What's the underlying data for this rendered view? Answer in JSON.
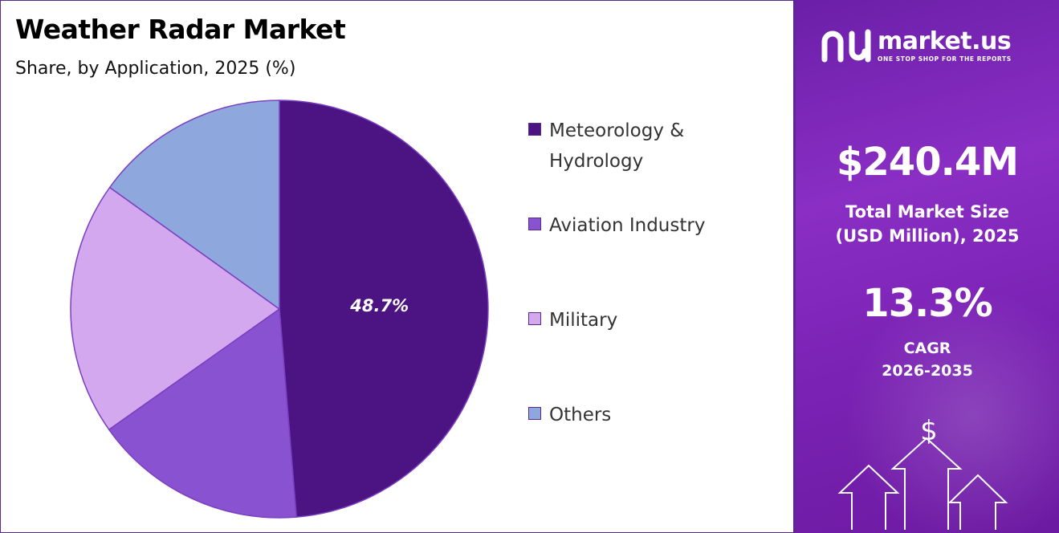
{
  "title": "Weather Radar Market",
  "subtitle": "Share, by Application, 2025 (%)",
  "chart_data": {
    "type": "pie",
    "title": "Weather Radar Market",
    "subtitle": "Share, by Application, 2025 (%)",
    "legend_position": "right",
    "slices": [
      {
        "name": "Meteorology & Hydrology",
        "value": 48.7,
        "label": "48.7%",
        "color": "#4b1482"
      },
      {
        "name": "Aviation Industry",
        "value": 16.5,
        "color": "#8952d0"
      },
      {
        "name": "Military",
        "value": 19.7,
        "color": "#d4a8ee"
      },
      {
        "name": "Others",
        "value": 15.1,
        "color": "#8ea8de"
      }
    ]
  },
  "legend": {
    "items": [
      {
        "line1": "Meteorology &",
        "line2": "Hydrology",
        "color": "#4b1482"
      },
      {
        "line1": "Aviation Industry",
        "line2": "",
        "color": "#8952d0"
      },
      {
        "line1": "Military",
        "line2": "",
        "color": "#d4a8ee"
      },
      {
        "line1": "Others",
        "line2": "",
        "color": "#8ea8de"
      }
    ]
  },
  "panel": {
    "brand_name": "market.us",
    "brand_tagline": "ONE STOP SHOP FOR THE REPORTS",
    "market_size": "$240.4M",
    "market_size_label_1": "Total Market Size",
    "market_size_label_2": "(USD Million), 2025",
    "cagr": "13.3%",
    "cagr_label_1": "CAGR",
    "cagr_label_2": "2026-2035",
    "dollar_symbol": "$"
  },
  "colors": {
    "accent": "#5b2a8c",
    "panel": "#7a22b4"
  }
}
